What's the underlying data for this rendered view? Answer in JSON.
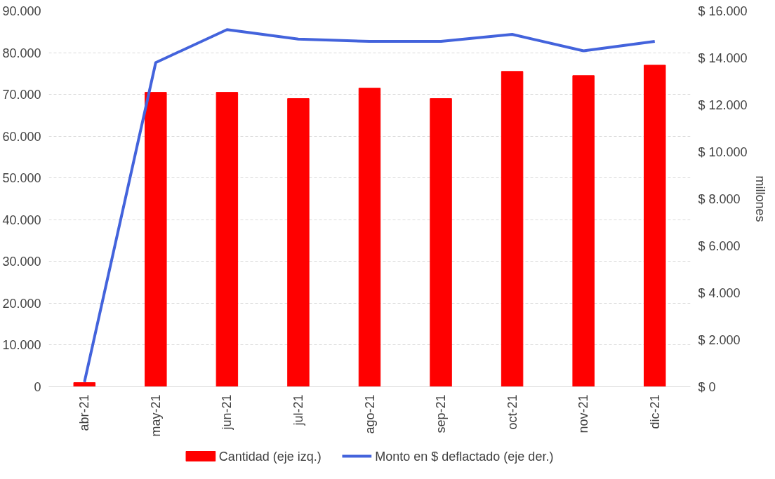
{
  "chart_data": {
    "type": "bar",
    "categories": [
      "abr-21",
      "may-21",
      "jun-21",
      "jul-21",
      "ago-21",
      "sep-21",
      "oct-21",
      "nov-21",
      "dic-21"
    ],
    "series": [
      {
        "name": "Cantidad (eje izq.)",
        "color": "#ff0000",
        "values": [
          1000,
          70500,
          70500,
          69000,
          71500,
          69000,
          75500,
          74500,
          77000
        ]
      },
      {
        "name": "Monto en $ deflactado (eje der.)",
        "type": "line",
        "axis": "y2",
        "color": "#4363dc",
        "values": [
          200,
          13800,
          15200,
          14800,
          14700,
          14700,
          15000,
          14300,
          14700
        ]
      }
    ],
    "ylim": [
      0,
      90000
    ],
    "yticks": [
      {
        "value": 0,
        "label": "0"
      },
      {
        "value": 10000,
        "label": "10.000"
      },
      {
        "value": 20000,
        "label": "20.000"
      },
      {
        "value": 30000,
        "label": "30.000"
      },
      {
        "value": 40000,
        "label": "40.000"
      },
      {
        "value": 50000,
        "label": "50.000"
      },
      {
        "value": 60000,
        "label": "60.000"
      },
      {
        "value": 70000,
        "label": "70.000"
      },
      {
        "value": 80000,
        "label": "80.000"
      },
      {
        "value": 90000,
        "label": "90.000"
      }
    ],
    "y2lim": [
      0,
      16000
    ],
    "y2ticks": [
      {
        "value": 0,
        "label": "$ 0"
      },
      {
        "value": 2000,
        "label": "$ 2.000"
      },
      {
        "value": 4000,
        "label": "$ 4.000"
      },
      {
        "value": 6000,
        "label": "$ 6.000"
      },
      {
        "value": 8000,
        "label": "$ 8.000"
      },
      {
        "value": 10000,
        "label": "$ 10.000"
      },
      {
        "value": 12000,
        "label": "$ 12.000"
      },
      {
        "value": 14000,
        "label": "$ 14.000"
      },
      {
        "value": 16000,
        "label": "$ 16.000"
      }
    ],
    "y2label": "millones",
    "grid": "y",
    "legend": "bottom",
    "line_style": "solid"
  }
}
